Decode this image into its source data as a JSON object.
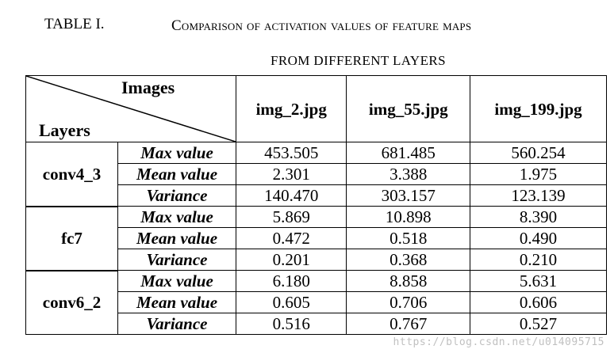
{
  "caption": {
    "label": "TABLE I.",
    "title_line1": "Comparison of activation values of feature maps",
    "title_line2": "FROM DIFFERENT LAYERS"
  },
  "table": {
    "corner_top": "Images",
    "corner_bottom": "Layers",
    "columns": [
      "img_2.jpg",
      "img_55.jpg",
      "img_199.jpg"
    ],
    "groups": [
      {
        "layer": "conv4_3",
        "rows": [
          {
            "metric": "Max value",
            "values": [
              "453.505",
              "681.485",
              "560.254"
            ]
          },
          {
            "metric": "Mean value",
            "values": [
              "2.301",
              "3.388",
              "1.975"
            ]
          },
          {
            "metric": "Variance",
            "values": [
              "140.470",
              "303.157",
              "123.139"
            ]
          }
        ]
      },
      {
        "layer": "fc7",
        "rows": [
          {
            "metric": "Max value",
            "values": [
              "5.869",
              "10.898",
              "8.390"
            ]
          },
          {
            "metric": "Mean value",
            "values": [
              "0.472",
              "0.518",
              "0.490"
            ]
          },
          {
            "metric": "Variance",
            "values": [
              "0.201",
              "0.368",
              "0.210"
            ]
          }
        ]
      },
      {
        "layer": "conv6_2",
        "rows": [
          {
            "metric": "Max value",
            "values": [
              "6.180",
              "8.858",
              "5.631"
            ]
          },
          {
            "metric": "Mean value",
            "values": [
              "0.605",
              "0.706",
              "0.606"
            ]
          },
          {
            "metric": "Variance",
            "values": [
              "0.516",
              "0.767",
              "0.527"
            ]
          }
        ]
      }
    ]
  },
  "watermark": "https://blog.csdn.net/u014095715"
}
